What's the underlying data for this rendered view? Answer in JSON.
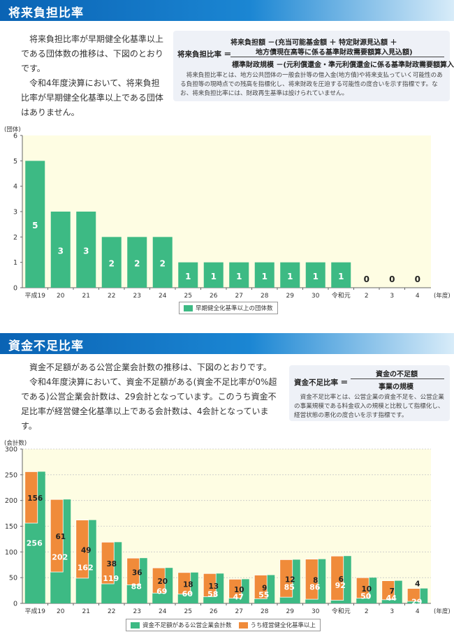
{
  "section1": {
    "title": "将来負担比率",
    "intro": [
      "将来負担比率が早期健全化基準以上である団体数の推移は、下図のとおりです。",
      "令和4年度決算において、将来負担比率が早期健全化基準以上である団体はありません。"
    ],
    "formula": {
      "label": "将来負担比率 ＝",
      "numerator_line1": "将来負担額 －(充当可能基金額 ＋ 特定財源見込額 ＋",
      "numerator_line2": "地方債現在高等に係る基準財政需要額算入見込額)",
      "denominator": "標準財政規模 －(元利償還金・準元利償還金に係る基準財政需要額算入額)",
      "note": "将来負担比率とは、地方公共団体の一般会計等の借入金(地方債)や将来支払っていく可能性のある負担等の現時点での残高を指標化し、将来財政を圧迫する可能性の度合いを示す指標です。なお、将来負担比率には、財政再生基準は設けられていません。"
    },
    "chart": {
      "unit_label": "(団体)",
      "legend": "早期健全化基準以上の団体数"
    }
  },
  "section2": {
    "title": "資金不足比率",
    "intro": [
      "資金不足額がある公営企業会計数の推移は、下図のとおりです。",
      "令和4年度決算において、資金不足額がある(資金不足比率が0%超である)公営企業会計数は、29会計となっています。このうち資金不足比率が経営健全化基準以上である会計数は、4会計となっています。"
    ],
    "formula": {
      "label": "資金不足比率 ＝",
      "numerator": "資金の不足額",
      "denominator": "事業の規模",
      "note": "資金不足比率とは、公営企業の資金不足を、公営企業の事業規模である料金収入の規模と比較して指標化し、経営状態の悪化の度合いを示す指標です。"
    },
    "chart": {
      "unit_label": "(会計数)",
      "legend_green": "資金不足額がある公営企業会計数",
      "legend_orange": "うち経営健全化基準以上"
    }
  },
  "colors": {
    "green": "#3dba84",
    "orange": "#f08b3a",
    "plot_bg": "#fefde3",
    "band": "#0a63b4"
  },
  "chart_data": [
    {
      "type": "bar",
      "categories": [
        "平成19",
        "20",
        "21",
        "22",
        "23",
        "24",
        "25",
        "26",
        "27",
        "28",
        "29",
        "30",
        "令和元",
        "2",
        "3",
        "4"
      ],
      "x_unit": "(年度)",
      "y_unit": "(団体)",
      "ylim": [
        0,
        6
      ],
      "yticks": [
        0,
        1,
        2,
        3,
        4,
        5,
        6
      ],
      "series": [
        {
          "name": "早期健全化基準以上の団体数",
          "values": [
            5,
            3,
            3,
            2,
            2,
            2,
            1,
            1,
            1,
            1,
            1,
            1,
            1,
            0,
            0,
            0
          ]
        }
      ]
    },
    {
      "type": "bar",
      "categories": [
        "平成19",
        "20",
        "21",
        "22",
        "23",
        "24",
        "25",
        "26",
        "27",
        "28",
        "29",
        "30",
        "令和元",
        "2",
        "3",
        "4"
      ],
      "x_unit": "(年度)",
      "y_unit": "(会計数)",
      "ylim": [
        0,
        300
      ],
      "yticks": [
        0,
        50,
        100,
        150,
        200,
        250,
        300
      ],
      "grid": true,
      "series": [
        {
          "name": "資金不足額がある公営企業会計数",
          "values": [
            256,
            202,
            162,
            119,
            88,
            69,
            60,
            58,
            47,
            55,
            85,
            86,
            92,
            50,
            44,
            29
          ]
        },
        {
          "name": "うち経営健全化基準以上",
          "values": [
            156,
            61,
            49,
            38,
            36,
            20,
            18,
            13,
            10,
            9,
            12,
            8,
            6,
            10,
            7,
            4
          ]
        }
      ]
    }
  ]
}
